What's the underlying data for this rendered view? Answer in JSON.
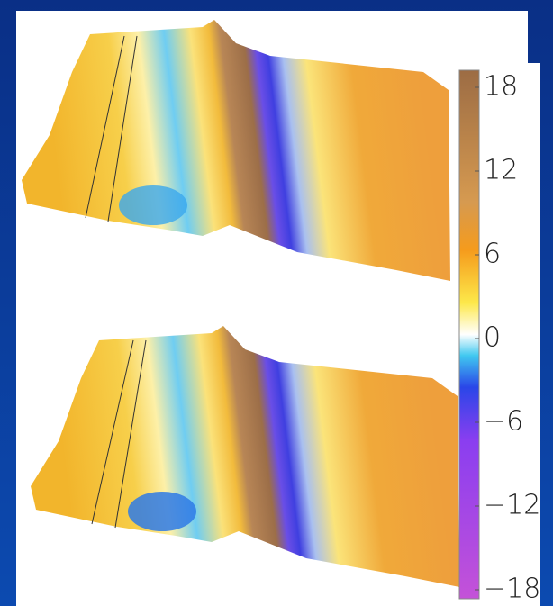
{
  "colorbar": {
    "lim": [
      -18,
      18
    ],
    "ticks": [
      18,
      12,
      6,
      0,
      {
        "value": -6,
        "label": "−6"
      },
      {
        "value": -12,
        "label": "−12"
      },
      {
        "value": -18,
        "label": "−18"
      }
    ]
  }
}
